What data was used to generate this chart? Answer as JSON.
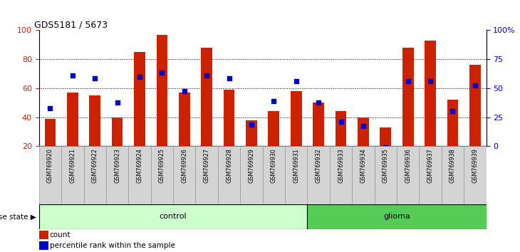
{
  "title": "GDS5181 / 5673",
  "samples": [
    "GSM769920",
    "GSM769921",
    "GSM769922",
    "GSM769923",
    "GSM769924",
    "GSM769925",
    "GSM769926",
    "GSM769927",
    "GSM769928",
    "GSM769929",
    "GSM769930",
    "GSM769931",
    "GSM769932",
    "GSM769933",
    "GSM769934",
    "GSM769935",
    "GSM769936",
    "GSM769937",
    "GSM769938",
    "GSM769939"
  ],
  "bar_values": [
    39,
    57,
    55,
    40,
    85,
    97,
    57,
    88,
    59,
    38,
    44,
    58,
    50,
    44,
    40,
    33,
    88,
    93,
    52,
    76
  ],
  "dot_values_left": [
    46,
    69,
    67,
    50,
    68,
    71,
    58,
    69,
    67,
    35,
    51,
    65,
    50,
    37,
    34,
    19,
    65,
    65,
    44,
    62
  ],
  "control_count": 12,
  "glioma_count": 8,
  "bar_color": "#cc2200",
  "dot_color": "#0000cc",
  "bar_width": 0.5,
  "ylim_left": [
    20,
    100
  ],
  "ylim_right": [
    0,
    100
  ],
  "yticks_left": [
    20,
    40,
    60,
    80,
    100
  ],
  "yticks_right": [
    0,
    25,
    50,
    75,
    100
  ],
  "ytick_labels_right": [
    "0",
    "25",
    "50",
    "75",
    "100%"
  ],
  "control_color": "#ccffcc",
  "glioma_color": "#55cc55",
  "legend_count_label": "count",
  "legend_pct_label": "percentile rank within the sample",
  "disease_state_label": "disease state",
  "control_label": "control",
  "glioma_label": "glioma",
  "background_color": "#ffffff",
  "tick_area_bg": "#cccccc"
}
